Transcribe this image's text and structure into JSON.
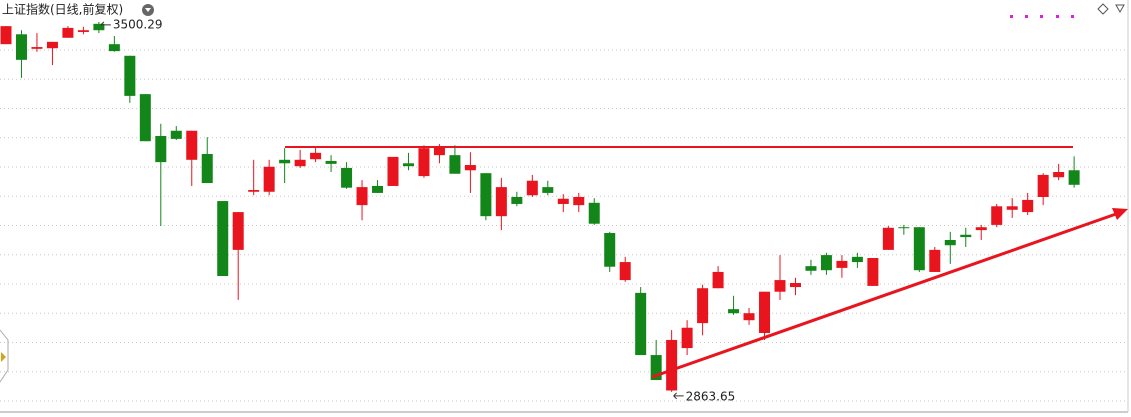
{
  "chart_data": {
    "type": "candlestick",
    "title": "上证指数(日线,前复权)",
    "up_color": "#e8141e",
    "down_color": "#13861a",
    "ylim": [
      2829,
      3538
    ],
    "open": [
      3462,
      3479,
      3454,
      3455,
      3473,
      3483,
      3497,
      3462,
      3442,
      3376,
      3304,
      3313,
      3263,
      3273,
      3192,
      3108,
      3208,
      3208,
      3263,
      3252,
      3264,
      3261,
      3249,
      3185,
      3218,
      3218,
      3257,
      3235,
      3271,
      3271,
      3245,
      3240,
      3166,
      3199,
      3202,
      3216,
      3187,
      3185,
      3189,
      3137,
      3056,
      3034,
      2927,
      2866,
      2939,
      2982,
      3042,
      3006,
      2987,
      2965,
      3036,
      3044,
      3080,
      3099,
      3077,
      3096,
      3046,
      3108,
      3147,
      3147,
      3070,
      3125,
      3134,
      3142,
      3151,
      3177,
      3173,
      3199,
      3233,
      3245
    ],
    "high": [
      3493,
      3486,
      3481,
      3466,
      3493,
      3492,
      3500.29,
      3476,
      3442,
      3376,
      3325,
      3321,
      3313,
      3302,
      3192,
      3173,
      3263,
      3263,
      3283,
      3280,
      3283,
      3271,
      3259,
      3228,
      3228,
      3268,
      3275,
      3288,
      3290,
      3288,
      3276,
      3240,
      3232,
      3208,
      3237,
      3227,
      3204,
      3206,
      3197,
      3139,
      3096,
      3044,
      2953,
      2970,
      2987,
      3048,
      3080,
      3029,
      3008,
      3036,
      3099,
      3060,
      3091,
      3103,
      3099,
      3103,
      3094,
      3149,
      3151,
      3147,
      3113,
      3139,
      3146,
      3151,
      3187,
      3197,
      3206,
      3240,
      3256,
      3269
    ],
    "low": [
      3462,
      3404,
      3449,
      3426,
      3473,
      3479,
      3481,
      3449,
      3361,
      3295,
      3149,
      3297,
      3218,
      3223,
      3063,
      3022,
      3202,
      3202,
      3223,
      3249,
      3259,
      3242,
      3213,
      3159,
      3206,
      3218,
      3245,
      3232,
      3257,
      3239,
      3206,
      3159,
      3142,
      3183,
      3199,
      3202,
      3173,
      3173,
      3151,
      3070,
      3053,
      2927,
      2884,
      2863.65,
      2927,
      2961,
      3042,
      2996,
      2979,
      2953,
      3022,
      3030,
      3065,
      3065,
      3060,
      3077,
      3046,
      3108,
      3134,
      3070,
      3070,
      3084,
      3113,
      3125,
      3147,
      3163,
      3168,
      3185,
      3228,
      3215
    ],
    "close": [
      3493,
      3435,
      3457,
      3466,
      3490,
      3486,
      3486,
      3450,
      3373,
      3295,
      3259,
      3299,
      3313,
      3223,
      3063,
      3173,
      3211,
      3251,
      3257,
      3263,
      3275,
      3256,
      3215,
      3216,
      3206,
      3268,
      3252,
      3283,
      3285,
      3239,
      3254,
      3166,
      3216,
      3187,
      3227,
      3206,
      3196,
      3199,
      3153,
      3079,
      3087,
      2927,
      2884,
      2953,
      2974,
      3042,
      3070,
      2999,
      2999,
      3036,
      3056,
      3051,
      3072,
      3073,
      3089,
      3087,
      3094,
      3146,
      3146,
      3073,
      3108,
      3116,
      3130,
      3147,
      3183,
      3183,
      3194,
      3237,
      3242,
      3220
    ],
    "annotations": [
      "3500.29",
      "2863.65"
    ]
  }
}
